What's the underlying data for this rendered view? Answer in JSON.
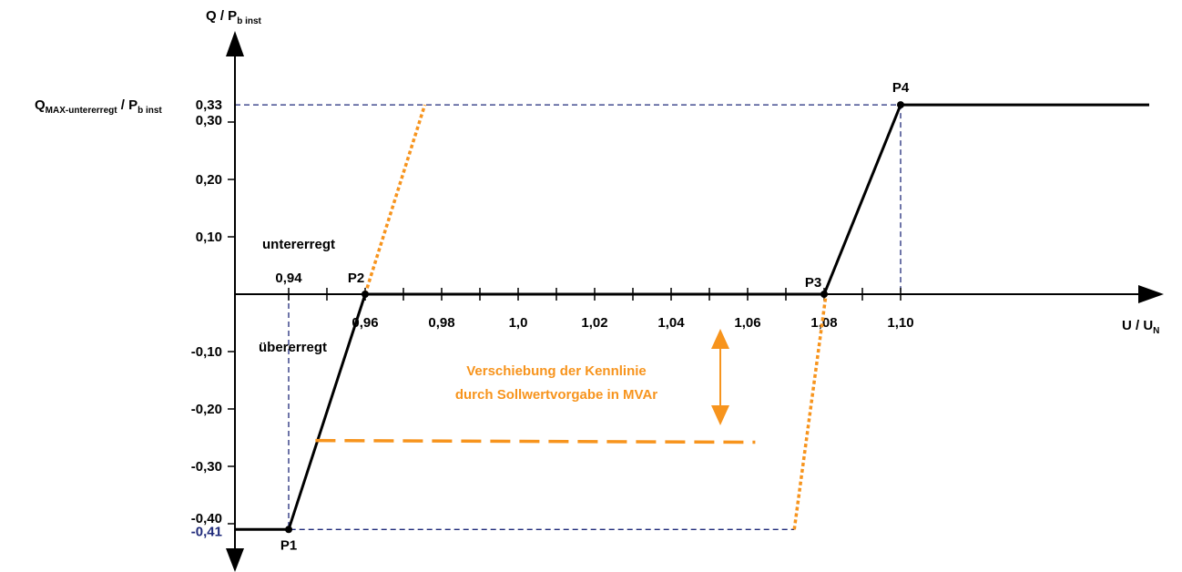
{
  "chart_data": {
    "type": "line",
    "xaxis": {
      "label_main": "U / U",
      "label_sub": "N",
      "ticks": [
        {
          "value": 0.94,
          "label": "0,94",
          "pos": "above"
        },
        {
          "value": 0.96,
          "label": "0,96",
          "pos": "below"
        },
        {
          "value": 0.98,
          "label": "0,98",
          "pos": "below"
        },
        {
          "value": 1.0,
          "label": "1,0",
          "pos": "below"
        },
        {
          "value": 1.02,
          "label": "1,02",
          "pos": "below"
        },
        {
          "value": 1.04,
          "label": "1,04",
          "pos": "below"
        },
        {
          "value": 1.06,
          "label": "1,06",
          "pos": "below"
        },
        {
          "value": 1.08,
          "label": "1,08",
          "pos": "below"
        },
        {
          "value": 1.1,
          "label": "1,10",
          "pos": "below"
        }
      ],
      "minor_ticks": [
        0.95,
        0.97,
        0.99,
        1.01,
        1.03,
        1.05,
        1.07,
        1.09
      ]
    },
    "yaxis": {
      "label_main": "Q / P",
      "label_sub": "b inst",
      "ticks": [
        {
          "value": 0.33,
          "label": "0,33"
        },
        {
          "value": 0.3,
          "label": "0,30"
        },
        {
          "value": 0.2,
          "label": "0,20"
        },
        {
          "value": 0.1,
          "label": "0,10"
        },
        {
          "value": -0.1,
          "label": "-0,10"
        },
        {
          "value": -0.2,
          "label": "-0,20"
        },
        {
          "value": -0.3,
          "label": "-0,30"
        },
        {
          "value": -0.4,
          "label": "-0,40"
        },
        {
          "value": -0.41,
          "label": "-0,41"
        }
      ]
    },
    "qmax_label": {
      "q": "Q",
      "sub": "MAX-untererregt",
      "rest": " / P",
      "rest_sub": "b inst"
    },
    "series": [
      {
        "style": "solid-black",
        "points": [
          [
            0.9,
            -0.41
          ],
          [
            0.94,
            -0.41
          ],
          [
            0.96,
            0.0
          ],
          [
            1.08,
            0.0
          ],
          [
            1.1,
            0.33
          ],
          [
            1.15,
            0.33
          ]
        ]
      },
      {
        "style": "dotted-orange",
        "points": [
          [
            0.96,
            0.0
          ],
          [
            0.9756,
            0.33
          ]
        ]
      },
      {
        "style": "dotted-orange",
        "points": [
          [
            1.0722,
            -0.41
          ],
          [
            1.0805,
            0.0
          ]
        ]
      },
      {
        "style": "dashed-orange",
        "points": [
          [
            0.947,
            -0.255
          ],
          [
            1.062,
            -0.258
          ]
        ]
      }
    ],
    "guides": [
      {
        "points": [
          [
            0.9,
            0.33
          ],
          [
            1.1,
            0.33
          ],
          [
            1.1,
            0.0
          ]
        ]
      },
      {
        "points": [
          [
            0.94,
            0.0
          ],
          [
            0.94,
            -0.41
          ],
          [
            1.0722,
            -0.41
          ]
        ]
      }
    ],
    "points": [
      {
        "label": "P1",
        "x": 0.94,
        "y": -0.41
      },
      {
        "label": "P2",
        "x": 0.96,
        "y": 0.0
      },
      {
        "label": "P3",
        "x": 1.08,
        "y": 0.0
      },
      {
        "label": "P4",
        "x": 1.1,
        "y": 0.33
      }
    ],
    "regions": {
      "above": "untererregt",
      "below": "übererregt"
    },
    "annotation": {
      "line1": "Verschiebung der Kennlinie",
      "line2": "durch Sollwertvorgabe in MVAr"
    },
    "colors": {
      "main": "#000000",
      "guide": "#1f2a7a",
      "shift": "#f7941d"
    }
  }
}
